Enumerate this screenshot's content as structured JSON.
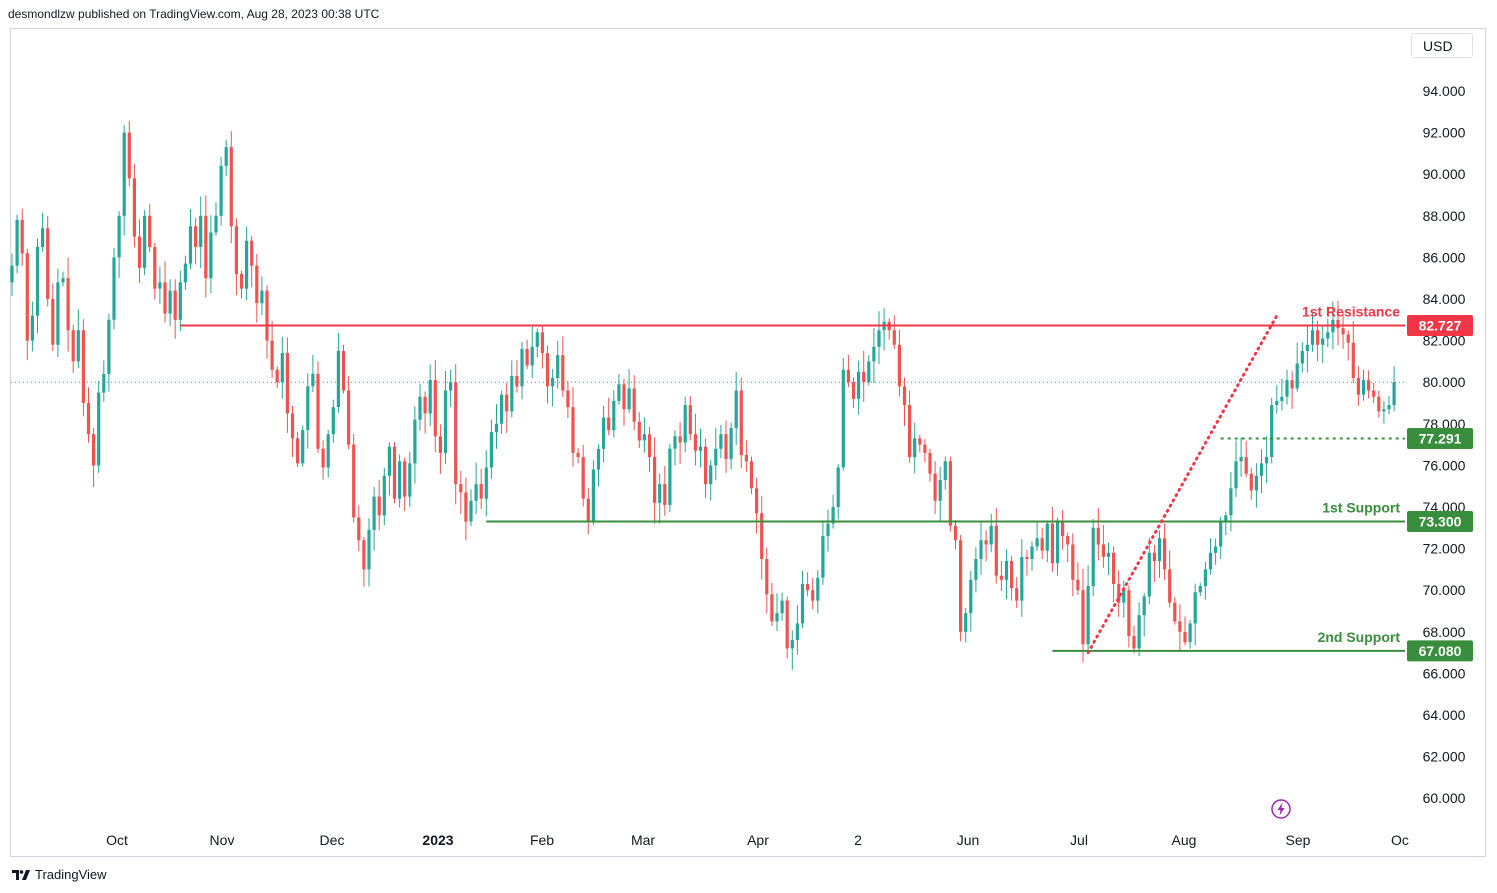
{
  "header": {
    "published_text": "desmondlzw published on TradingView.com, Aug 28, 2023 00:38 UTC"
  },
  "toolbar": {
    "currency": "USD"
  },
  "footer": {
    "brand": "TradingView",
    "logo_icon": "tradingview-logo-icon"
  },
  "icons": {
    "replay": "lightning-bolt-icon"
  },
  "colors": {
    "up": "#26a69a",
    "down": "#ef5350",
    "resistance": "#f23645",
    "support": "#388e3c",
    "trendline": "#f23645",
    "last_price": "#26a69a"
  },
  "chart_data": {
    "type": "candlestick",
    "ylim": [
      59,
      96
    ],
    "y_ticks": [
      "94.000",
      "92.000",
      "90.000",
      "88.000",
      "86.000",
      "84.000",
      "82.000",
      "80.000",
      "78.000",
      "76.000",
      "74.000",
      "72.000",
      "70.000",
      "68.000",
      "66.000",
      "64.000",
      "62.000",
      "60.000"
    ],
    "x_ticks": [
      {
        "label": "Oct",
        "bold": false
      },
      {
        "label": "Nov",
        "bold": false
      },
      {
        "label": "Dec",
        "bold": false
      },
      {
        "label": "2023",
        "bold": true
      },
      {
        "label": "Feb",
        "bold": false
      },
      {
        "label": "Mar",
        "bold": false
      },
      {
        "label": "Apr",
        "bold": false
      },
      {
        "label": "2",
        "bold": false
      },
      {
        "label": "Jun",
        "bold": false
      },
      {
        "label": "Jul",
        "bold": false
      },
      {
        "label": "Aug",
        "bold": false
      },
      {
        "label": "Sep",
        "bold": false
      },
      {
        "label": "Oc",
        "bold": false
      }
    ],
    "closes": [
      85.6,
      87.8,
      86.2,
      82.0,
      83.2,
      86.5,
      87.4,
      84.0,
      81.8,
      84.8,
      85.0,
      82.5,
      81.0,
      82.5,
      79.0,
      77.5,
      76.0,
      79.5,
      80.4,
      83.0,
      86.0,
      88.0,
      92.0,
      89.8,
      87.0,
      85.5,
      88.0,
      86.5,
      84.5,
      84.8,
      83.3,
      84.4,
      83.0,
      84.8,
      85.7,
      87.5,
      86.5,
      88.0,
      85.0,
      87.2,
      88.0,
      90.4,
      91.3,
      87.5,
      85.2,
      84.5,
      86.8,
      85.6,
      83.8,
      84.4,
      82.0,
      80.6,
      80.0,
      81.4,
      78.5,
      77.3,
      76.1,
      77.7,
      79.8,
      80.4,
      76.8,
      75.9,
      77.5,
      78.8,
      81.5,
      79.6,
      77.0,
      73.5,
      72.4,
      71.0,
      72.9,
      74.5,
      73.6,
      75.5,
      76.9,
      74.4,
      76.2,
      74.5,
      76.1,
      78.2,
      79.3,
      78.5,
      80.1,
      77.4,
      76.6,
      79.6,
      80.0,
      75.1,
      74.7,
      73.3,
      74.3,
      75.1,
      74.4,
      75.9,
      77.6,
      78.0,
      79.4,
      78.6,
      80.3,
      79.8,
      81.6,
      80.8,
      81.7,
      82.4,
      81.4,
      79.8,
      80.2,
      81.3,
      79.6,
      78.8,
      76.6,
      76.4,
      74.4,
      73.3,
      75.8,
      76.8,
      78.3,
      77.7,
      79.1,
      79.9,
      78.7,
      79.7,
      78.1,
      77.2,
      77.5,
      76.4,
      74.2,
      75.1,
      74.1,
      76.8,
      77.4,
      77.1,
      78.9,
      77.5,
      76.7,
      76.9,
      75.1,
      76.0,
      76.8,
      77.5,
      76.3,
      77.8,
      79.6,
      76.5,
      76.2,
      74.9,
      73.7,
      71.5,
      69.8,
      68.5,
      68.9,
      69.5,
      67.2,
      67.6,
      68.4,
      70.3,
      70.0,
      69.5,
      70.6,
      72.6,
      73.2,
      74.0,
      75.9,
      80.6,
      80.0,
      79.2,
      80.5,
      80.0,
      81.0,
      81.7,
      82.5,
      82.9,
      82.5,
      81.8,
      79.8,
      78.9,
      76.4,
      77.3,
      77.0,
      76.6,
      75.6,
      74.3,
      75.3,
      76.2,
      73.1,
      72.4,
      68.0,
      68.9,
      70.5,
      71.5,
      72.4,
      72.2,
      73.1,
      70.7,
      70.5,
      71.4,
      70.1,
      69.5,
      71.6,
      71.5,
      72.1,
      72.5,
      71.9,
      73.2,
      71.3,
      73.3,
      72.6,
      72.2,
      70.5,
      70.0,
      67.4,
      70.2,
      73.0,
      72.2,
      71.6,
      71.8,
      70.3,
      69.4,
      70.0,
      67.8,
      67.2,
      68.8,
      69.7,
      71.8,
      71.4,
      72.5,
      71.0,
      69.4,
      68.5,
      68.0,
      67.5,
      68.4,
      69.9,
      70.2,
      71.0,
      71.8,
      72.1,
      73.3,
      73.6,
      74.9,
      76.2,
      76.4,
      75.6,
      74.8,
      75.5,
      76.1,
      76.4,
      78.9,
      79.1,
      79.3,
      80.1,
      79.7,
      80.9,
      81.5,
      81.8,
      82.5,
      81.8,
      82.1,
      82.4,
      83.0,
      82.6,
      82.3,
      81.9,
      80.2,
      79.4,
      80.1,
      79.6,
      79.3,
      78.6,
      78.7,
      78.9,
      80.0
    ],
    "last_price": {
      "value": 80.0,
      "style": "dotted"
    },
    "levels": [
      {
        "name": "1st Resistance",
        "value": 82.727,
        "label": "82.727",
        "color": "resistance",
        "style": "solid",
        "x_start_bar": 33
      },
      {
        "name": "",
        "value": 77.291,
        "label": "77.291",
        "color": "support",
        "style": "dotted",
        "x_start_bar": 237
      },
      {
        "name": "1st Support",
        "value": 73.3,
        "label": "73.300",
        "color": "support",
        "style": "solid",
        "x_start_bar": 93
      },
      {
        "name": "2nd Support",
        "value": 67.08,
        "label": "67.080",
        "color": "support",
        "style": "solid",
        "x_start_bar": 204
      }
    ],
    "trendline": {
      "from_bar": 211,
      "from_value": 67.0,
      "to_bar": 248,
      "to_value": 83.2,
      "style": "dotted"
    }
  }
}
